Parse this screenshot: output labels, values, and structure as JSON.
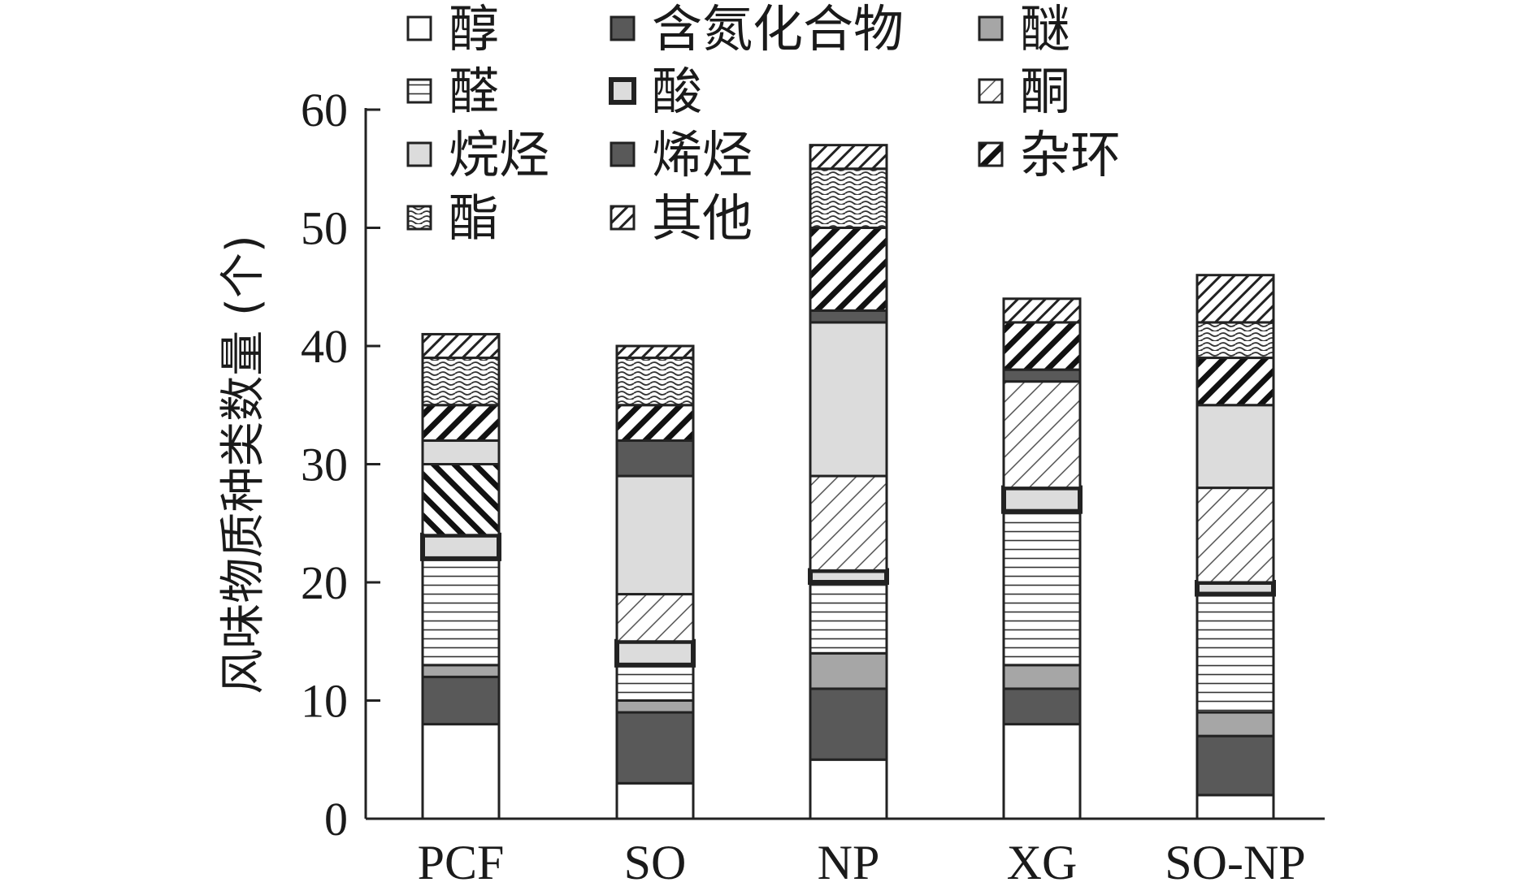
{
  "chart_data": {
    "type": "bar",
    "stacked": true,
    "title": "",
    "xlabel": "",
    "ylabel": "风味物质种类数量 (个)",
    "ylim": [
      0,
      60
    ],
    "yticks": [
      0,
      10,
      20,
      30,
      40,
      50,
      60
    ],
    "categories": [
      "PCF",
      "SO",
      "NP",
      "XG",
      "SO-NP"
    ],
    "legend_position": "top",
    "series": [
      {
        "name": "醇",
        "values": [
          8,
          3,
          5,
          8,
          2
        ],
        "fill": "white"
      },
      {
        "name": "烯烃",
        "values": [
          4,
          6,
          6,
          3,
          5
        ],
        "fill": "dark"
      },
      {
        "name": "醚",
        "values": [
          1,
          1,
          3,
          2,
          2
        ],
        "fill": "mid"
      },
      {
        "name": "醛",
        "values": [
          9,
          3,
          6,
          13,
          10
        ],
        "fill": "hlines"
      },
      {
        "name": "酸",
        "values": [
          2,
          2,
          1,
          2,
          1
        ],
        "fill": "light-thick"
      },
      {
        "name": "酮",
        "values": [
          0,
          4,
          8,
          9,
          8
        ],
        "fill": "diag-thin"
      },
      {
        "name": "烷烃",
        "values": [
          0,
          10,
          13,
          0,
          7
        ],
        "fill": "light"
      },
      {
        "name": "含氮化合物",
        "values": [
          0,
          3,
          1,
          1,
          0
        ],
        "fill": "dark"
      },
      {
        "name": "杂环",
        "values": [
          6,
          0,
          0,
          0,
          0
        ],
        "fill": "backdiag-thick"
      },
      {
        "name": "烷烃",
        "values": [
          2,
          0,
          0,
          0,
          0
        ],
        "fill": "light"
      },
      {
        "name": "杂环",
        "values": [
          3,
          3,
          7,
          4,
          4
        ],
        "fill": "diag-thick"
      },
      {
        "name": "酯",
        "values": [
          4,
          4,
          5,
          0,
          3
        ],
        "fill": "wave"
      },
      {
        "name": "其他",
        "values": [
          2,
          1,
          2,
          2,
          4
        ],
        "fill": "diag-medium"
      }
    ],
    "legend": [
      {
        "label": "醇",
        "fill": "white"
      },
      {
        "label": "含氮化合物",
        "fill": "dark"
      },
      {
        "label": "醚",
        "fill": "mid"
      },
      {
        "label": "醛",
        "fill": "hlines"
      },
      {
        "label": "酸",
        "fill": "light-thick"
      },
      {
        "label": "酮",
        "fill": "diag-thin"
      },
      {
        "label": "烷烃",
        "fill": "light"
      },
      {
        "label": "烯烃",
        "fill": "dark"
      },
      {
        "label": "杂环",
        "fill": "diag-thick"
      },
      {
        "label": "酯",
        "fill": "wave"
      },
      {
        "label": "其他",
        "fill": "diag-medium"
      }
    ]
  },
  "colors": {
    "dark": "#595959",
    "mid": "#a6a6a6",
    "light": "#dcdcdc",
    "white": "#ffffff",
    "stroke": "#222222"
  }
}
